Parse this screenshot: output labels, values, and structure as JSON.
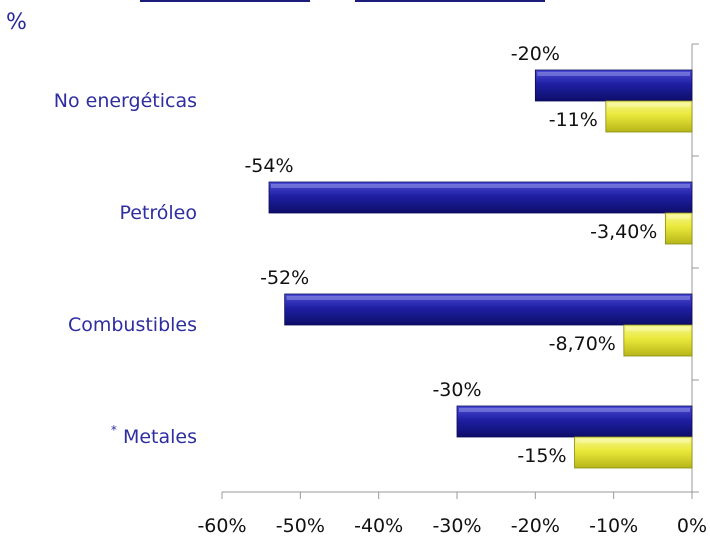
{
  "unit_label": "%",
  "colors": {
    "series1": "#1f1fa3",
    "series2": "#e8e83a",
    "category_text": "#2e2ea0"
  },
  "chart_data": {
    "type": "bar",
    "orientation": "horizontal",
    "categories": [
      "No energéticas",
      "Petróleo",
      "Combustibles",
      "Metales"
    ],
    "category_prefix": {
      "Metales": "*"
    },
    "series": [
      {
        "values": [
          -20,
          -54,
          -52,
          -30
        ],
        "labels": [
          "-20%",
          "-54%",
          "-52%",
          "-30%"
        ],
        "color": "#1f1fa3"
      },
      {
        "values": [
          -11,
          -3.4,
          -8.7,
          -15
        ],
        "labels": [
          "-11%",
          "-3,40%",
          "-8,70%",
          "-15%"
        ],
        "color": "#e8e83a"
      }
    ],
    "xlim": [
      -60,
      0
    ],
    "xticks": [
      -60,
      -50,
      -40,
      -30,
      -20,
      -10,
      0
    ],
    "xtick_labels": [
      "-60%",
      "-50%",
      "-40%",
      "-30%",
      "-20%",
      "-10%",
      "0%"
    ],
    "legend": "none",
    "grid": false
  }
}
